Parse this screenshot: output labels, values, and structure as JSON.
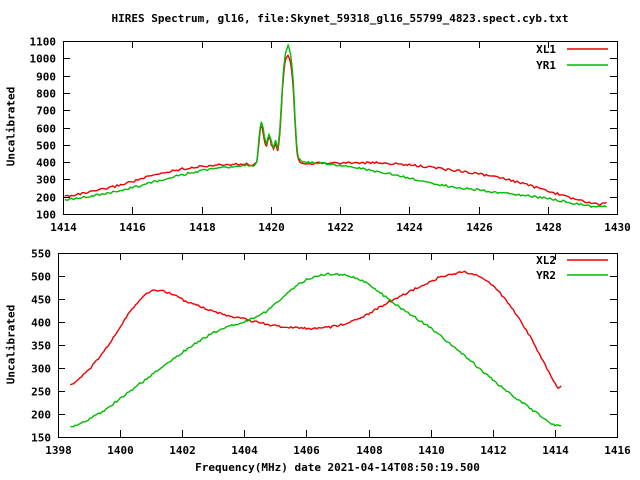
{
  "title": "HIRES Spectrum, gl16, file:Skynet_59318_gl16_55799_4823.spect.cyb.txt",
  "colors": {
    "red": "#ee0000",
    "green": "#00bb00",
    "frame": "#000000",
    "text": "#000000",
    "background": "#ffffff"
  },
  "chart_data": [
    {
      "type": "line",
      "title": "",
      "xlabel": "",
      "ylabel": "Uncalibrated",
      "xlim": [
        1414,
        1430
      ],
      "ylim": [
        100,
        1100
      ],
      "xticks": [
        1414,
        1416,
        1418,
        1420,
        1422,
        1424,
        1426,
        1428,
        1430
      ],
      "yticks": [
        100,
        200,
        300,
        400,
        500,
        600,
        700,
        800,
        900,
        1000,
        1100
      ],
      "grid": false,
      "legend_position": "top-right",
      "series": [
        {
          "name": "XL1",
          "color": "red",
          "points": [
            [
              1414.05,
              203
            ],
            [
              1414.5,
              216
            ],
            [
              1415,
              236
            ],
            [
              1415.5,
              260
            ],
            [
              1416,
              288
            ],
            [
              1416.5,
              317
            ],
            [
              1417,
              342
            ],
            [
              1417.5,
              362
            ],
            [
              1418,
              375
            ],
            [
              1418.5,
              383
            ],
            [
              1419,
              387
            ],
            [
              1419.3,
              388
            ],
            [
              1419.55,
              389
            ],
            [
              1419.62,
              430
            ],
            [
              1419.7,
              592
            ],
            [
              1419.75,
              601
            ],
            [
              1419.82,
              522
            ],
            [
              1419.88,
              492
            ],
            [
              1419.95,
              546
            ],
            [
              1420.02,
              502
            ],
            [
              1420.08,
              476
            ],
            [
              1420.14,
              506
            ],
            [
              1420.2,
              466
            ],
            [
              1420.26,
              560
            ],
            [
              1420.31,
              722
            ],
            [
              1420.36,
              880
            ],
            [
              1420.41,
              975
            ],
            [
              1420.46,
              1010
            ],
            [
              1420.5,
              1018
            ],
            [
              1420.55,
              996
            ],
            [
              1420.6,
              936
            ],
            [
              1420.65,
              820
            ],
            [
              1420.7,
              640
            ],
            [
              1420.75,
              480
            ],
            [
              1420.8,
              416
            ],
            [
              1420.88,
              398
            ],
            [
              1421,
              394
            ],
            [
              1421.5,
              394
            ],
            [
              1422,
              395
            ],
            [
              1422.5,
              396
            ],
            [
              1423,
              395
            ],
            [
              1423.5,
              391
            ],
            [
              1424,
              383
            ],
            [
              1424.5,
              373
            ],
            [
              1425,
              360
            ],
            [
              1425.5,
              348
            ],
            [
              1426,
              332
            ],
            [
              1426.5,
              313
            ],
            [
              1427,
              291
            ],
            [
              1427.5,
              263
            ],
            [
              1428,
              233
            ],
            [
              1428.5,
              203
            ],
            [
              1429,
              175
            ],
            [
              1429.3,
              162
            ],
            [
              1429.5,
              156
            ],
            [
              1429.7,
              161
            ]
          ]
        },
        {
          "name": "YR1",
          "color": "green",
          "points": [
            [
              1414.05,
              184
            ],
            [
              1414.5,
              194
            ],
            [
              1415,
              210
            ],
            [
              1415.5,
              229
            ],
            [
              1416,
              252
            ],
            [
              1416.5,
              278
            ],
            [
              1417,
              305
            ],
            [
              1417.5,
              329
            ],
            [
              1418,
              351
            ],
            [
              1418.5,
              366
            ],
            [
              1419,
              375
            ],
            [
              1419.3,
              379
            ],
            [
              1419.55,
              382
            ],
            [
              1419.62,
              448
            ],
            [
              1419.7,
              612
            ],
            [
              1419.75,
              622
            ],
            [
              1419.82,
              546
            ],
            [
              1419.88,
              506
            ],
            [
              1419.95,
              562
            ],
            [
              1420.02,
              516
            ],
            [
              1420.08,
              490
            ],
            [
              1420.14,
              522
            ],
            [
              1420.2,
              482
            ],
            [
              1420.26,
              586
            ],
            [
              1420.31,
              746
            ],
            [
              1420.36,
              906
            ],
            [
              1420.41,
              1010
            ],
            [
              1420.46,
              1056
            ],
            [
              1420.5,
              1072
            ],
            [
              1420.55,
              1048
            ],
            [
              1420.6,
              978
            ],
            [
              1420.65,
              856
            ],
            [
              1420.7,
              666
            ],
            [
              1420.75,
              496
            ],
            [
              1420.8,
              428
            ],
            [
              1420.88,
              406
            ],
            [
              1421,
              400
            ],
            [
              1421.5,
              392
            ],
            [
              1422,
              378
            ],
            [
              1422.5,
              366
            ],
            [
              1423,
              347
            ],
            [
              1423.5,
              330
            ],
            [
              1424,
              307
            ],
            [
              1424.5,
              285
            ],
            [
              1425,
              265
            ],
            [
              1425.5,
              250
            ],
            [
              1426,
              238
            ],
            [
              1426.5,
              226
            ],
            [
              1427,
              214
            ],
            [
              1427.5,
              203
            ],
            [
              1428,
              190
            ],
            [
              1428.5,
              172
            ],
            [
              1429,
              152
            ],
            [
              1429.3,
              143
            ],
            [
              1429.5,
              140
            ],
            [
              1429.7,
              143
            ]
          ]
        }
      ]
    },
    {
      "type": "line",
      "title": "",
      "xlabel": "Frequency(MHz) date 2021-04-14T08:50:19.500",
      "ylabel": "Uncalibrated",
      "xlim": [
        1398,
        1416
      ],
      "ylim": [
        150,
        550
      ],
      "xticks": [
        1398,
        1400,
        1402,
        1404,
        1406,
        1408,
        1410,
        1412,
        1414,
        1416
      ],
      "yticks": [
        150,
        200,
        250,
        300,
        350,
        400,
        450,
        500,
        550
      ],
      "grid": false,
      "legend_position": "top-right",
      "series": [
        {
          "name": "XL2",
          "color": "red",
          "points": [
            [
              1398.4,
              263
            ],
            [
              1398.7,
              278
            ],
            [
              1399,
              297
            ],
            [
              1399.3,
              320
            ],
            [
              1399.6,
              347
            ],
            [
              1399.9,
              378
            ],
            [
              1400.2,
              410
            ],
            [
              1400.5,
              438
            ],
            [
              1400.8,
              458
            ],
            [
              1401.1,
              468
            ],
            [
              1401.4,
              467
            ],
            [
              1401.7,
              459
            ],
            [
              1402,
              449
            ],
            [
              1402.4,
              438
            ],
            [
              1402.8,
              428
            ],
            [
              1403.2,
              419
            ],
            [
              1403.6,
              412
            ],
            [
              1404,
              406
            ],
            [
              1404.5,
              398
            ],
            [
              1405,
              392
            ],
            [
              1405.5,
              388
            ],
            [
              1406,
              386
            ],
            [
              1406.5,
              387
            ],
            [
              1407,
              392
            ],
            [
              1407.5,
              403
            ],
            [
              1408,
              418
            ],
            [
              1408.5,
              438
            ],
            [
              1409,
              455
            ],
            [
              1409.5,
              472
            ],
            [
              1410,
              488
            ],
            [
              1410.4,
              500
            ],
            [
              1410.8,
              506
            ],
            [
              1411.1,
              508
            ],
            [
              1411.4,
              504
            ],
            [
              1411.7,
              494
            ],
            [
              1412,
              478
            ],
            [
              1412.3,
              458
            ],
            [
              1412.6,
              432
            ],
            [
              1412.9,
              402
            ],
            [
              1413.2,
              368
            ],
            [
              1413.5,
              330
            ],
            [
              1413.8,
              292
            ],
            [
              1414,
              268
            ],
            [
              1414.1,
              257
            ],
            [
              1414.2,
              262
            ]
          ]
        },
        {
          "name": "YR2",
          "color": "green",
          "points": [
            [
              1398.4,
              172
            ],
            [
              1398.8,
              182
            ],
            [
              1399.2,
              196
            ],
            [
              1399.6,
              213
            ],
            [
              1400,
              234
            ],
            [
              1400.4,
              254
            ],
            [
              1400.8,
              274
            ],
            [
              1401.2,
              294
            ],
            [
              1401.6,
              314
            ],
            [
              1402,
              334
            ],
            [
              1402.4,
              352
            ],
            [
              1402.8,
              369
            ],
            [
              1403.2,
              383
            ],
            [
              1403.6,
              392
            ],
            [
              1404,
              401
            ],
            [
              1404.5,
              414
            ],
            [
              1404.8,
              428
            ],
            [
              1405.1,
              446
            ],
            [
              1405.4,
              464
            ],
            [
              1405.7,
              480
            ],
            [
              1406,
              492
            ],
            [
              1406.3,
              499
            ],
            [
              1406.6,
              503
            ],
            [
              1407,
              504
            ],
            [
              1407.4,
              500
            ],
            [
              1407.8,
              490
            ],
            [
              1408.2,
              472
            ],
            [
              1408.6,
              452
            ],
            [
              1409,
              432
            ],
            [
              1409.5,
              410
            ],
            [
              1410,
              387
            ],
            [
              1410.5,
              360
            ],
            [
              1411,
              332
            ],
            [
              1411.5,
              303
            ],
            [
              1412,
              274
            ],
            [
              1412.5,
              247
            ],
            [
              1413,
              222
            ],
            [
              1413.4,
              203
            ],
            [
              1413.7,
              188
            ],
            [
              1413.9,
              179
            ],
            [
              1414.05,
              174
            ],
            [
              1414.2,
              175
            ]
          ]
        }
      ]
    }
  ]
}
